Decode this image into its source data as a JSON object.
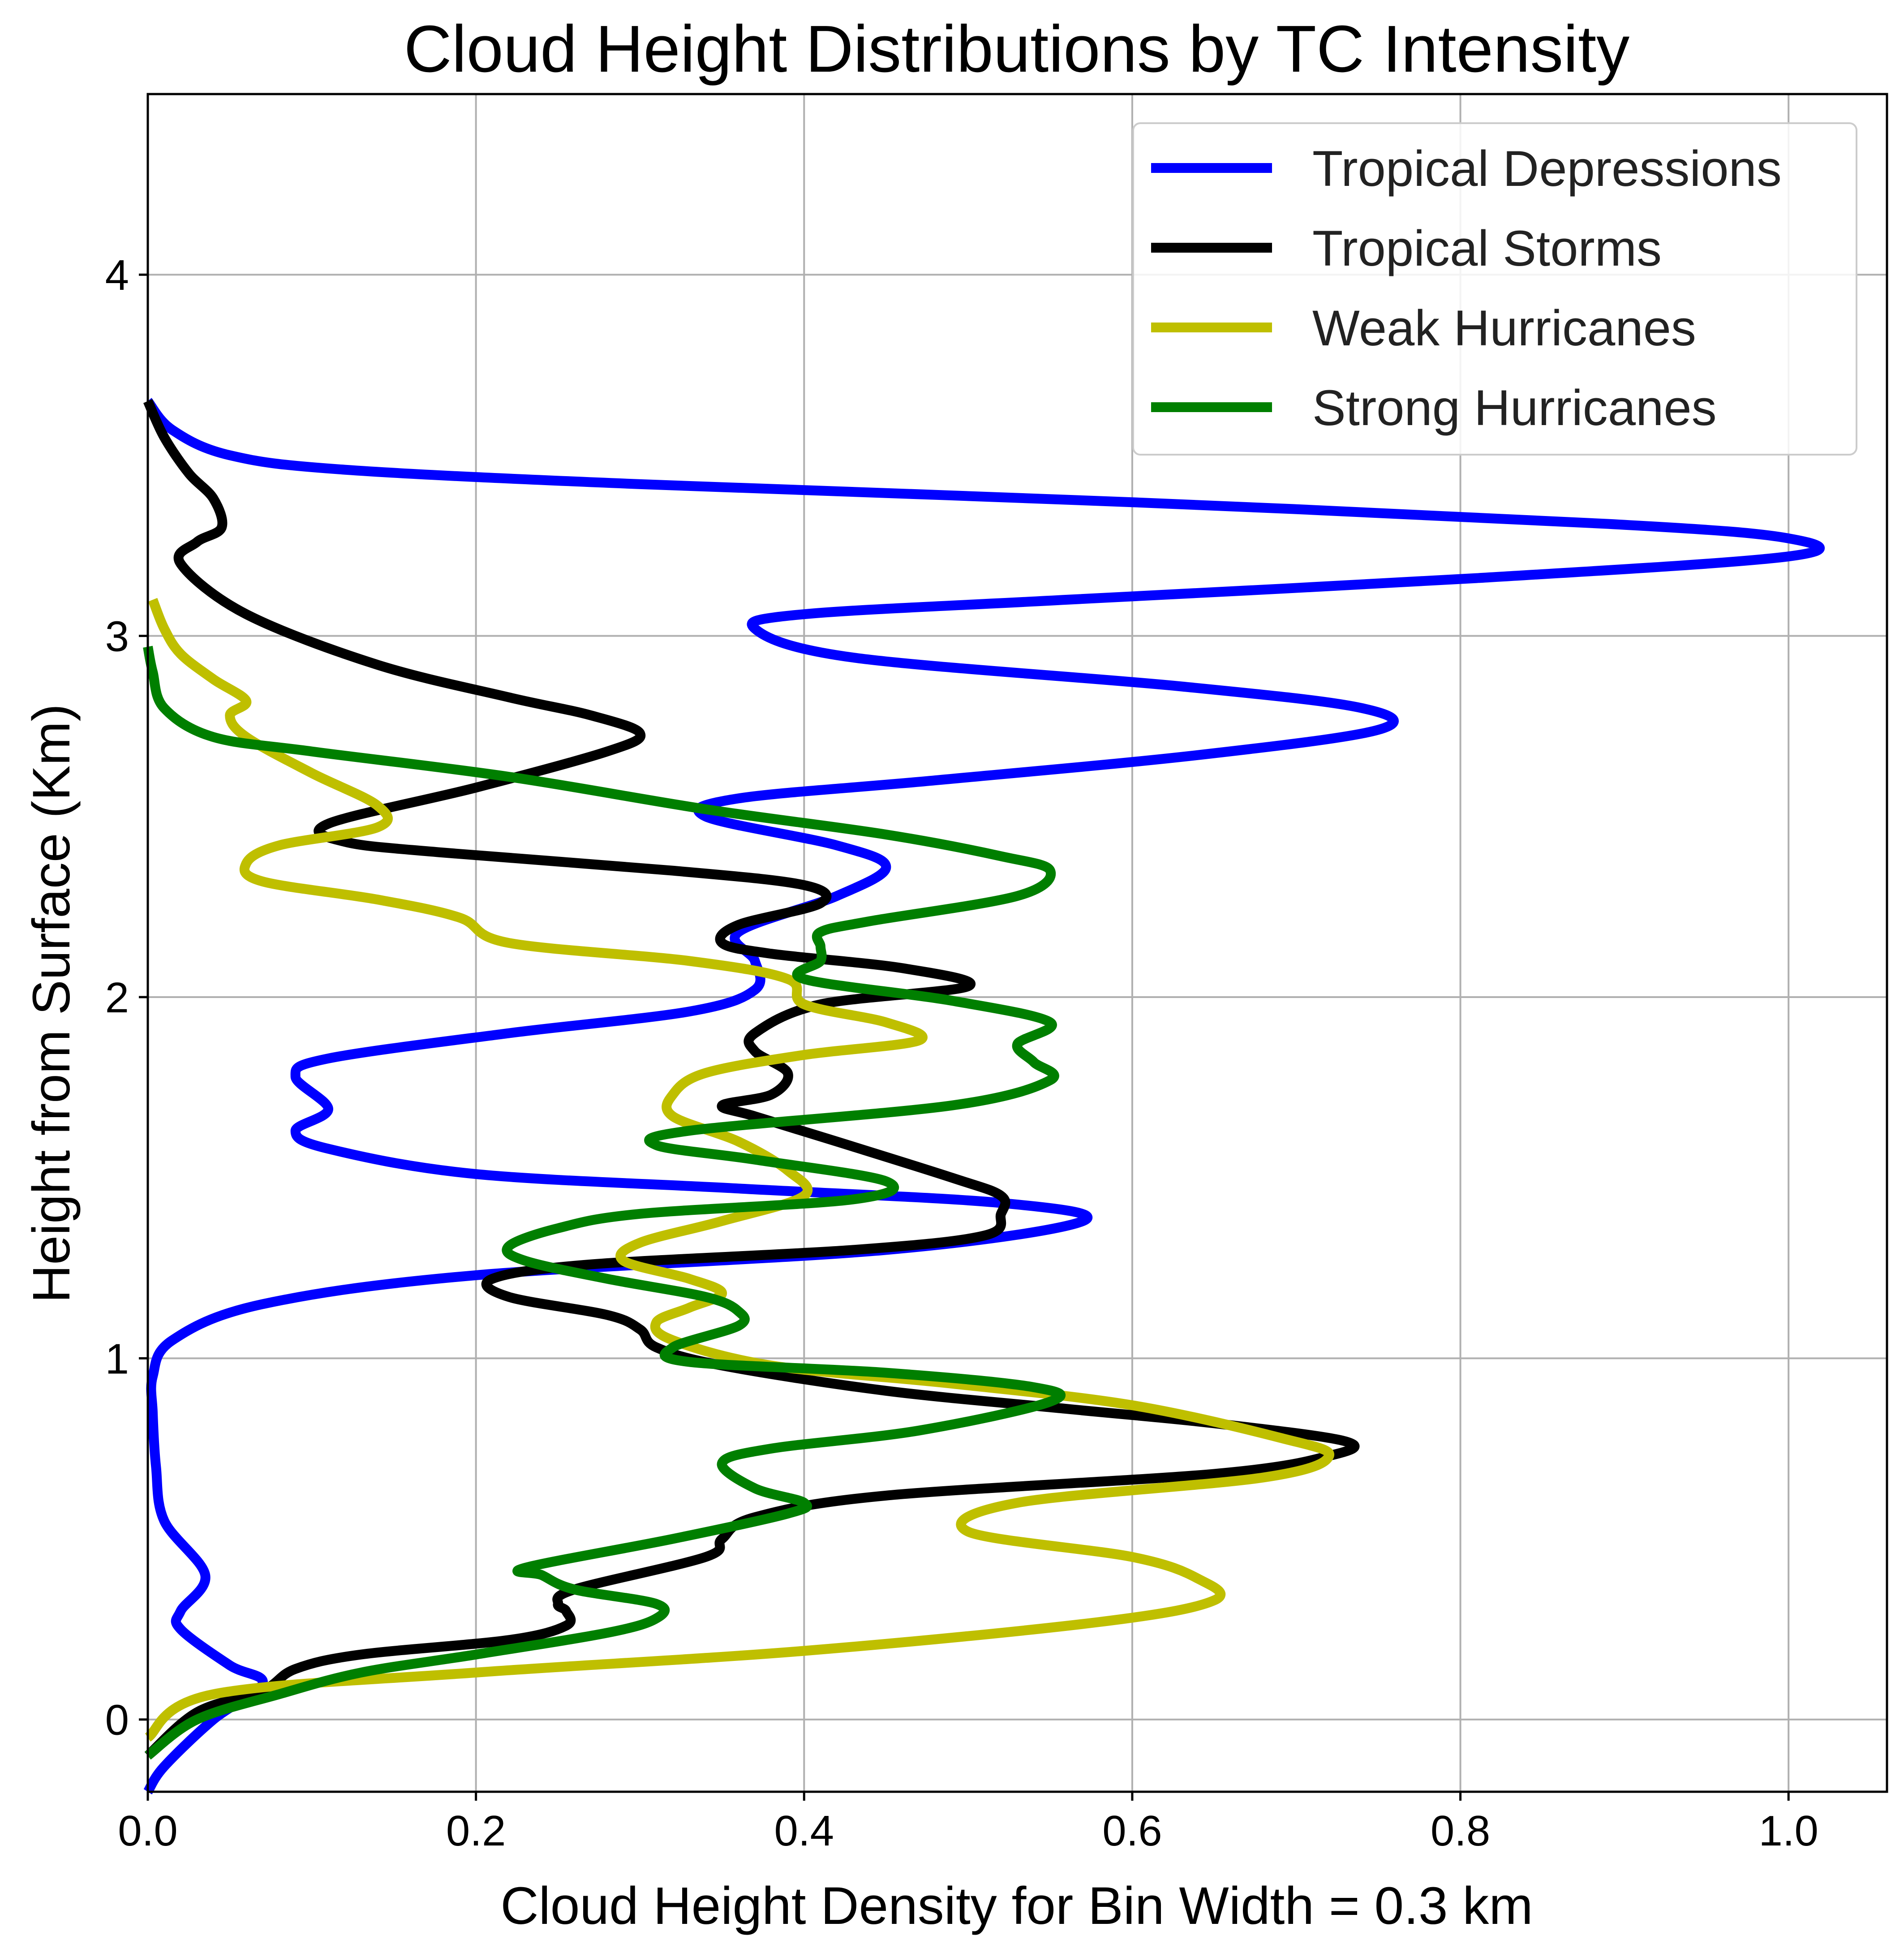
{
  "chart_data": {
    "type": "line",
    "title": "Cloud Height Distributions by TC Intensity",
    "xlabel": "Cloud Height Density for Bin Width = 0.3 km",
    "ylabel": "Height from Surface (Km)",
    "xlim": [
      0,
      1.06
    ],
    "ylim": [
      -0.2,
      4.5
    ],
    "xticks": [
      "0.0",
      "0.2",
      "0.4",
      "0.6",
      "0.8",
      "1.0"
    ],
    "xtick_values": [
      0,
      0.2,
      0.4,
      0.6,
      0.8,
      1.0
    ],
    "yticks": [
      "0",
      "1",
      "2",
      "3",
      "4"
    ],
    "ytick_values": [
      0,
      1,
      2,
      3,
      4
    ],
    "grid": true,
    "legend_position": "top-right",
    "series": [
      {
        "name": "Tropical Depressions",
        "color": "#0000ff",
        "points": [
          [
            0.0,
            -0.2
          ],
          [
            0.01,
            -0.13
          ],
          [
            0.04,
            0.0
          ],
          [
            0.07,
            0.1
          ],
          [
            0.05,
            0.15
          ],
          [
            0.02,
            0.25
          ],
          [
            0.02,
            0.3
          ],
          [
            0.035,
            0.4
          ],
          [
            0.01,
            0.55
          ],
          [
            0.005,
            0.7
          ],
          [
            0.003,
            0.85
          ],
          [
            0.003,
            0.95
          ],
          [
            0.015,
            1.05
          ],
          [
            0.07,
            1.15
          ],
          [
            0.2,
            1.23
          ],
          [
            0.45,
            1.3
          ],
          [
            0.57,
            1.38
          ],
          [
            0.52,
            1.43
          ],
          [
            0.36,
            1.47
          ],
          [
            0.2,
            1.51
          ],
          [
            0.11,
            1.58
          ],
          [
            0.09,
            1.63
          ],
          [
            0.11,
            1.69
          ],
          [
            0.09,
            1.78
          ],
          [
            0.11,
            1.83
          ],
          [
            0.22,
            1.9
          ],
          [
            0.33,
            1.96
          ],
          [
            0.37,
            2.02
          ],
          [
            0.37,
            2.1
          ],
          [
            0.36,
            2.18
          ],
          [
            0.42,
            2.28
          ],
          [
            0.45,
            2.36
          ],
          [
            0.42,
            2.42
          ],
          [
            0.34,
            2.5
          ],
          [
            0.36,
            2.55
          ],
          [
            0.48,
            2.6
          ],
          [
            0.64,
            2.67
          ],
          [
            0.75,
            2.74
          ],
          [
            0.74,
            2.8
          ],
          [
            0.63,
            2.86
          ],
          [
            0.43,
            2.94
          ],
          [
            0.37,
            3.02
          ],
          [
            0.4,
            3.06
          ],
          [
            0.56,
            3.1
          ],
          [
            0.81,
            3.16
          ],
          [
            1.0,
            3.22
          ],
          [
            1.0,
            3.27
          ],
          [
            0.89,
            3.31
          ],
          [
            0.6,
            3.37
          ],
          [
            0.3,
            3.42
          ],
          [
            0.12,
            3.46
          ],
          [
            0.05,
            3.5
          ],
          [
            0.015,
            3.57
          ],
          [
            0.0,
            3.65
          ]
        ]
      },
      {
        "name": "Tropical Storms",
        "color": "#000000",
        "points": [
          [
            0.0,
            -0.1
          ],
          [
            0.03,
            0.02
          ],
          [
            0.07,
            0.08
          ],
          [
            0.09,
            0.14
          ],
          [
            0.13,
            0.18
          ],
          [
            0.22,
            0.22
          ],
          [
            0.255,
            0.26
          ],
          [
            0.255,
            0.3
          ],
          [
            0.25,
            0.32
          ],
          [
            0.26,
            0.36
          ],
          [
            0.34,
            0.45
          ],
          [
            0.35,
            0.5
          ],
          [
            0.37,
            0.56
          ],
          [
            0.45,
            0.62
          ],
          [
            0.65,
            0.68
          ],
          [
            0.72,
            0.73
          ],
          [
            0.73,
            0.77
          ],
          [
            0.65,
            0.82
          ],
          [
            0.56,
            0.86
          ],
          [
            0.45,
            0.91
          ],
          [
            0.35,
            0.98
          ],
          [
            0.31,
            1.03
          ],
          [
            0.3,
            1.08
          ],
          [
            0.28,
            1.12
          ],
          [
            0.22,
            1.17
          ],
          [
            0.21,
            1.22
          ],
          [
            0.27,
            1.26
          ],
          [
            0.43,
            1.3
          ],
          [
            0.51,
            1.34
          ],
          [
            0.52,
            1.4
          ],
          [
            0.52,
            1.45
          ],
          [
            0.49,
            1.5
          ],
          [
            0.42,
            1.6
          ],
          [
            0.37,
            1.67
          ],
          [
            0.35,
            1.7
          ],
          [
            0.38,
            1.73
          ],
          [
            0.39,
            1.79
          ],
          [
            0.37,
            1.85
          ],
          [
            0.37,
            1.9
          ],
          [
            0.41,
            1.98
          ],
          [
            0.5,
            2.03
          ],
          [
            0.46,
            2.08
          ],
          [
            0.38,
            2.12
          ],
          [
            0.35,
            2.15
          ],
          [
            0.36,
            2.2
          ],
          [
            0.41,
            2.26
          ],
          [
            0.4,
            2.31
          ],
          [
            0.32,
            2.35
          ],
          [
            0.18,
            2.4
          ],
          [
            0.12,
            2.43
          ],
          [
            0.11,
            2.48
          ],
          [
            0.2,
            2.58
          ],
          [
            0.28,
            2.68
          ],
          [
            0.3,
            2.73
          ],
          [
            0.27,
            2.78
          ],
          [
            0.22,
            2.83
          ],
          [
            0.14,
            2.92
          ],
          [
            0.06,
            3.06
          ],
          [
            0.02,
            3.2
          ],
          [
            0.03,
            3.26
          ],
          [
            0.045,
            3.3
          ],
          [
            0.04,
            3.38
          ],
          [
            0.025,
            3.45
          ],
          [
            0.01,
            3.55
          ],
          [
            0.0,
            3.65
          ]
        ]
      },
      {
        "name": "Weak Hurricanes",
        "color": "#bfbf00",
        "points": [
          [
            0.0,
            -0.05
          ],
          [
            0.04,
            0.07
          ],
          [
            0.2,
            0.13
          ],
          [
            0.4,
            0.19
          ],
          [
            0.58,
            0.27
          ],
          [
            0.65,
            0.33
          ],
          [
            0.64,
            0.39
          ],
          [
            0.6,
            0.45
          ],
          [
            0.5,
            0.52
          ],
          [
            0.53,
            0.6
          ],
          [
            0.68,
            0.67
          ],
          [
            0.72,
            0.73
          ],
          [
            0.69,
            0.78
          ],
          [
            0.6,
            0.87
          ],
          [
            0.49,
            0.93
          ],
          [
            0.38,
            0.98
          ],
          [
            0.32,
            1.05
          ],
          [
            0.31,
            1.1
          ],
          [
            0.33,
            1.14
          ],
          [
            0.35,
            1.18
          ],
          [
            0.33,
            1.22
          ],
          [
            0.29,
            1.27
          ],
          [
            0.3,
            1.32
          ],
          [
            0.35,
            1.38
          ],
          [
            0.4,
            1.45
          ],
          [
            0.39,
            1.52
          ],
          [
            0.36,
            1.6
          ],
          [
            0.32,
            1.67
          ],
          [
            0.32,
            1.73
          ],
          [
            0.34,
            1.79
          ],
          [
            0.4,
            1.84
          ],
          [
            0.47,
            1.88
          ],
          [
            0.45,
            1.93
          ],
          [
            0.4,
            1.98
          ],
          [
            0.39,
            2.05
          ],
          [
            0.33,
            2.1
          ],
          [
            0.22,
            2.15
          ],
          [
            0.19,
            2.22
          ],
          [
            0.14,
            2.27
          ],
          [
            0.07,
            2.32
          ],
          [
            0.06,
            2.37
          ],
          [
            0.08,
            2.42
          ],
          [
            0.14,
            2.47
          ],
          [
            0.14,
            2.53
          ],
          [
            0.1,
            2.62
          ],
          [
            0.06,
            2.72
          ],
          [
            0.05,
            2.78
          ],
          [
            0.06,
            2.82
          ],
          [
            0.04,
            2.88
          ],
          [
            0.02,
            2.95
          ],
          [
            0.01,
            3.02
          ],
          [
            0.003,
            3.1
          ]
        ]
      },
      {
        "name": "Strong Hurricanes",
        "color": "#007f00",
        "points": [
          [
            0.0,
            -0.1
          ],
          [
            0.03,
            0.0
          ],
          [
            0.08,
            0.07
          ],
          [
            0.13,
            0.13
          ],
          [
            0.2,
            0.18
          ],
          [
            0.28,
            0.24
          ],
          [
            0.31,
            0.28
          ],
          [
            0.31,
            0.32
          ],
          [
            0.26,
            0.36
          ],
          [
            0.24,
            0.4
          ],
          [
            0.23,
            0.42
          ],
          [
            0.32,
            0.5
          ],
          [
            0.39,
            0.57
          ],
          [
            0.4,
            0.6
          ],
          [
            0.37,
            0.64
          ],
          [
            0.35,
            0.71
          ],
          [
            0.38,
            0.75
          ],
          [
            0.47,
            0.8
          ],
          [
            0.55,
            0.88
          ],
          [
            0.54,
            0.92
          ],
          [
            0.45,
            0.96
          ],
          [
            0.33,
            0.99
          ],
          [
            0.32,
            1.03
          ],
          [
            0.36,
            1.09
          ],
          [
            0.36,
            1.13
          ],
          [
            0.34,
            1.17
          ],
          [
            0.28,
            1.22
          ],
          [
            0.23,
            1.27
          ],
          [
            0.22,
            1.31
          ],
          [
            0.25,
            1.36
          ],
          [
            0.3,
            1.4
          ],
          [
            0.43,
            1.44
          ],
          [
            0.45,
            1.49
          ],
          [
            0.37,
            1.55
          ],
          [
            0.31,
            1.59
          ],
          [
            0.33,
            1.63
          ],
          [
            0.49,
            1.7
          ],
          [
            0.55,
            1.77
          ],
          [
            0.54,
            1.82
          ],
          [
            0.53,
            1.87
          ],
          [
            0.55,
            1.93
          ],
          [
            0.49,
            1.99
          ],
          [
            0.4,
            2.05
          ],
          [
            0.41,
            2.1
          ],
          [
            0.41,
            2.14
          ],
          [
            0.41,
            2.18
          ],
          [
            0.44,
            2.21
          ],
          [
            0.53,
            2.28
          ],
          [
            0.55,
            2.35
          ],
          [
            0.52,
            2.39
          ],
          [
            0.45,
            2.45
          ],
          [
            0.34,
            2.52
          ],
          [
            0.22,
            2.61
          ],
          [
            0.1,
            2.68
          ],
          [
            0.04,
            2.72
          ],
          [
            0.01,
            2.8
          ],
          [
            0.003,
            2.9
          ],
          [
            0.0,
            2.97
          ]
        ]
      }
    ]
  }
}
